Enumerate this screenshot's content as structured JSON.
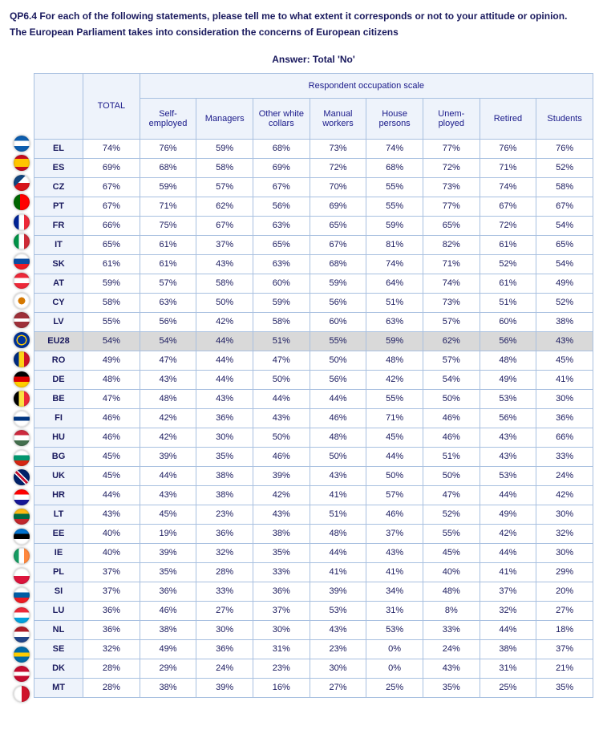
{
  "question": "QP6.4 For each of the following statements, please tell me to what extent it corresponds or not to your attitude or opinion.",
  "subtitle": "The European Parliament takes into consideration the concerns of European citizens",
  "answer_title": "Answer: Total 'No'",
  "group_header": "Respondent occupation scale",
  "total_header": "TOTAL",
  "columns": [
    "Self-employed",
    "Managers",
    "Other white collars",
    "Manual workers",
    "House persons",
    "Unem-ployed",
    "Retired",
    "Students"
  ],
  "rows": [
    {
      "code": "EL",
      "flag": "linear-gradient(#0d5eaf 33%,#fff 33%,#fff 66%,#0d5eaf 66%)",
      "total": "74%",
      "v": [
        "76%",
        "59%",
        "68%",
        "73%",
        "74%",
        "77%",
        "76%",
        "76%"
      ]
    },
    {
      "code": "ES",
      "flag": "linear-gradient(#c60b1e 25%,#ffc400 25%,#ffc400 75%,#c60b1e 75%)",
      "total": "69%",
      "v": [
        "68%",
        "58%",
        "69%",
        "72%",
        "68%",
        "72%",
        "71%",
        "52%"
      ]
    },
    {
      "code": "CZ",
      "flag": "linear-gradient(135deg,#11457e 40%,transparent 40%),linear-gradient(#fff 50%,#d7141a 50%)",
      "total": "67%",
      "v": [
        "59%",
        "57%",
        "67%",
        "70%",
        "55%",
        "73%",
        "74%",
        "58%"
      ]
    },
    {
      "code": "PT",
      "flag": "linear-gradient(90deg,#006600 40%,#ff0000 40%)",
      "total": "67%",
      "v": [
        "71%",
        "62%",
        "56%",
        "69%",
        "55%",
        "77%",
        "67%",
        "67%"
      ]
    },
    {
      "code": "FR",
      "flag": "linear-gradient(90deg,#002395 33%,#fff 33%,#fff 66%,#ed2939 66%)",
      "total": "66%",
      "v": [
        "75%",
        "67%",
        "63%",
        "65%",
        "59%",
        "65%",
        "72%",
        "54%"
      ]
    },
    {
      "code": "IT",
      "flag": "linear-gradient(90deg,#009246 33%,#fff 33%,#fff 66%,#ce2b37 66%)",
      "total": "65%",
      "v": [
        "61%",
        "37%",
        "65%",
        "67%",
        "81%",
        "82%",
        "61%",
        "65%"
      ]
    },
    {
      "code": "SK",
      "flag": "linear-gradient(#fff 33%,#0b4ea2 33%,#0b4ea2 66%,#ee1c25 66%)",
      "total": "61%",
      "v": [
        "61%",
        "43%",
        "63%",
        "68%",
        "74%",
        "71%",
        "52%",
        "54%"
      ]
    },
    {
      "code": "AT",
      "flag": "linear-gradient(#ed2939 33%,#fff 33%,#fff 66%,#ed2939 66%)",
      "total": "59%",
      "v": [
        "57%",
        "58%",
        "60%",
        "59%",
        "64%",
        "74%",
        "61%",
        "49%"
      ]
    },
    {
      "code": "CY",
      "flag": "radial-gradient(circle,#d57800 30%,#fff 32%)",
      "total": "58%",
      "v": [
        "63%",
        "50%",
        "59%",
        "56%",
        "51%",
        "73%",
        "51%",
        "52%"
      ]
    },
    {
      "code": "LV",
      "flag": "linear-gradient(#9e3039 40%,#fff 40%,#fff 60%,#9e3039 60%)",
      "total": "55%",
      "v": [
        "56%",
        "42%",
        "58%",
        "60%",
        "63%",
        "57%",
        "60%",
        "38%"
      ]
    },
    {
      "code": "EU28",
      "flag": "radial-gradient(circle,#003399 35%,#ffcc00 36%,#ffcc00 45%,#003399 46%)",
      "total": "54%",
      "v": [
        "54%",
        "44%",
        "51%",
        "55%",
        "59%",
        "62%",
        "56%",
        "43%"
      ],
      "highlight": true
    },
    {
      "code": "RO",
      "flag": "linear-gradient(90deg,#002b7f 33%,#fcd116 33%,#fcd116 66%,#ce1126 66%)",
      "total": "49%",
      "v": [
        "47%",
        "44%",
        "47%",
        "50%",
        "48%",
        "57%",
        "48%",
        "45%"
      ]
    },
    {
      "code": "DE",
      "flag": "linear-gradient(#000 33%,#dd0000 33%,#dd0000 66%,#ffce00 66%)",
      "total": "48%",
      "v": [
        "43%",
        "44%",
        "50%",
        "56%",
        "42%",
        "54%",
        "49%",
        "41%"
      ]
    },
    {
      "code": "BE",
      "flag": "linear-gradient(90deg,#000 33%,#fae042 33%,#fae042 66%,#ed2939 66%)",
      "total": "47%",
      "v": [
        "48%",
        "43%",
        "44%",
        "44%",
        "55%",
        "50%",
        "53%",
        "30%"
      ]
    },
    {
      "code": "FI",
      "flag": "linear-gradient(#fff 38%,#003580 38%,#003580 62%,#fff 62%),linear-gradient(90deg,#fff 30%,#003580 30%,#003580 50%,#fff 50%)",
      "total": "46%",
      "v": [
        "42%",
        "36%",
        "43%",
        "46%",
        "71%",
        "46%",
        "56%",
        "36%"
      ]
    },
    {
      "code": "HU",
      "flag": "linear-gradient(#cd2a3e 33%,#fff 33%,#fff 66%,#436f4d 66%)",
      "total": "46%",
      "v": [
        "42%",
        "30%",
        "50%",
        "48%",
        "45%",
        "46%",
        "43%",
        "66%"
      ]
    },
    {
      "code": "BG",
      "flag": "linear-gradient(#fff 33%,#00966e 33%,#00966e 66%,#d62612 66%)",
      "total": "45%",
      "v": [
        "39%",
        "35%",
        "46%",
        "50%",
        "44%",
        "51%",
        "43%",
        "33%"
      ]
    },
    {
      "code": "UK",
      "flag": "linear-gradient(45deg,#012169 40%,#fff 40%,#fff 45%,#c8102e 45%,#c8102e 55%,#fff 55%,#fff 60%,#012169 60%),linear-gradient(-45deg,#012169 40%,#fff 40%,#fff 45%,#c8102e 45%,#c8102e 55%,#fff 55%,#fff 60%,#012169 60%)",
      "total": "45%",
      "v": [
        "44%",
        "38%",
        "39%",
        "43%",
        "50%",
        "50%",
        "53%",
        "24%"
      ]
    },
    {
      "code": "HR",
      "flag": "linear-gradient(#ff0000 33%,#fff 33%,#fff 66%,#171796 66%)",
      "total": "44%",
      "v": [
        "43%",
        "38%",
        "42%",
        "41%",
        "57%",
        "47%",
        "44%",
        "42%"
      ]
    },
    {
      "code": "LT",
      "flag": "linear-gradient(#fdb913 33%,#006a44 33%,#006a44 66%,#c1272d 66%)",
      "total": "43%",
      "v": [
        "45%",
        "23%",
        "43%",
        "51%",
        "46%",
        "52%",
        "49%",
        "30%"
      ]
    },
    {
      "code": "EE",
      "flag": "linear-gradient(#0072ce 33%,#000 33%,#000 66%,#fff 66%)",
      "total": "40%",
      "v": [
        "19%",
        "36%",
        "38%",
        "48%",
        "37%",
        "55%",
        "42%",
        "32%"
      ]
    },
    {
      "code": "IE",
      "flag": "linear-gradient(90deg,#169b62 33%,#fff 33%,#fff 66%,#ff883e 66%)",
      "total": "40%",
      "v": [
        "39%",
        "32%",
        "35%",
        "44%",
        "43%",
        "45%",
        "44%",
        "30%"
      ]
    },
    {
      "code": "PL",
      "flag": "linear-gradient(#fff 50%,#dc143c 50%)",
      "total": "37%",
      "v": [
        "35%",
        "28%",
        "33%",
        "41%",
        "41%",
        "40%",
        "41%",
        "29%"
      ]
    },
    {
      "code": "SI",
      "flag": "linear-gradient(#fff 33%,#005da4 33%,#005da4 66%,#ed1c24 66%)",
      "total": "37%",
      "v": [
        "36%",
        "33%",
        "36%",
        "39%",
        "34%",
        "48%",
        "37%",
        "20%"
      ]
    },
    {
      "code": "LU",
      "flag": "linear-gradient(#ed2939 33%,#fff 33%,#fff 66%,#00a1de 66%)",
      "total": "36%",
      "v": [
        "46%",
        "27%",
        "37%",
        "53%",
        "31%",
        "8%",
        "32%",
        "27%"
      ]
    },
    {
      "code": "NL",
      "flag": "linear-gradient(#ae1c28 33%,#fff 33%,#fff 66%,#21468b 66%)",
      "total": "36%",
      "v": [
        "38%",
        "30%",
        "30%",
        "43%",
        "53%",
        "33%",
        "44%",
        "18%"
      ]
    },
    {
      "code": "SE",
      "flag": "linear-gradient(#006aa7 38%,#fecc00 38%,#fecc00 62%,#006aa7 62%),linear-gradient(90deg,#006aa7 30%,#fecc00 30%,#fecc00 50%,#006aa7 50%)",
      "total": "32%",
      "v": [
        "49%",
        "36%",
        "31%",
        "23%",
        "0%",
        "24%",
        "38%",
        "37%"
      ]
    },
    {
      "code": "DK",
      "flag": "linear-gradient(#c60c30 38%,#fff 38%,#fff 62%,#c60c30 62%),linear-gradient(90deg,#c60c30 30%,#fff 30%,#fff 50%,#c60c30 50%)",
      "total": "28%",
      "v": [
        "29%",
        "24%",
        "23%",
        "30%",
        "0%",
        "43%",
        "31%",
        "21%"
      ]
    },
    {
      "code": "MT",
      "flag": "linear-gradient(90deg,#fff 50%,#cf142b 50%)",
      "total": "28%",
      "v": [
        "38%",
        "39%",
        "16%",
        "27%",
        "25%",
        "35%",
        "25%",
        "35%"
      ]
    }
  ]
}
